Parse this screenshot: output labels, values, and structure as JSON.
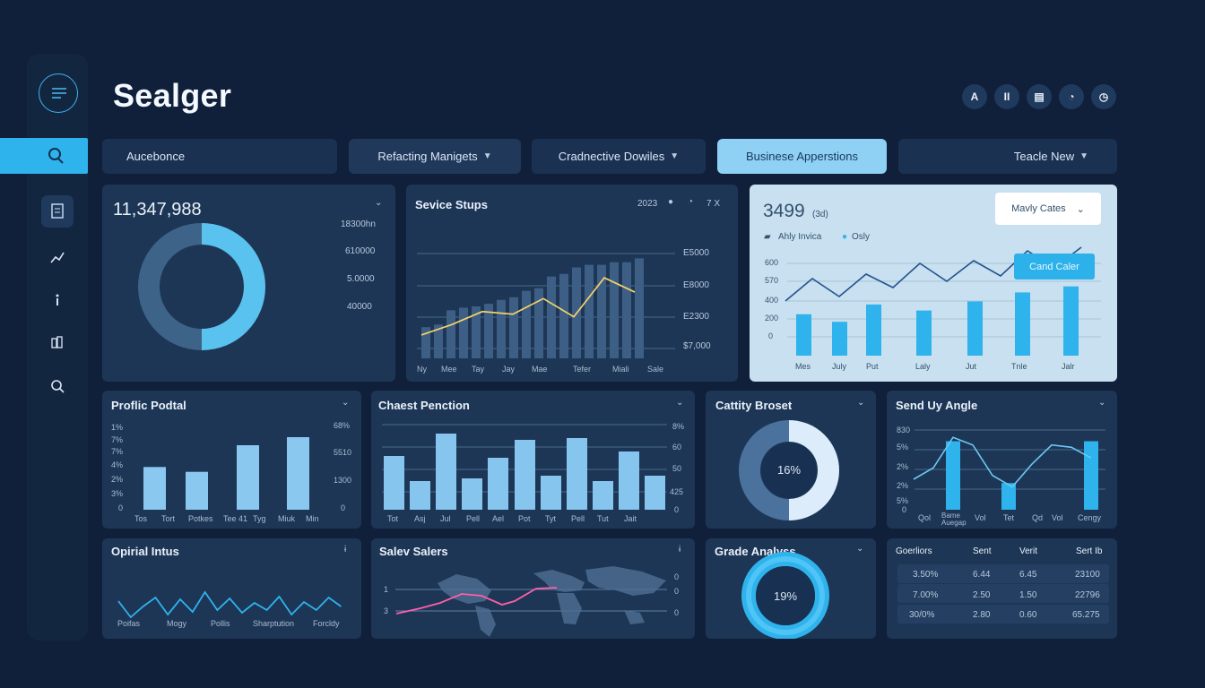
{
  "app": {
    "title": "Sealger"
  },
  "top_icons": [
    "A",
    "II",
    "▤",
    "◔",
    "◷"
  ],
  "filters": [
    {
      "label": "Aucebonce"
    },
    {
      "label": "Refacting Manigets"
    },
    {
      "label": "Cradnective Dowiles"
    },
    {
      "label": "Businese Apperstions"
    },
    {
      "label": "Teacle New"
    }
  ],
  "kpi": {
    "value": "11,347,988",
    "labels": [
      "18300hn",
      "610000",
      "5.0000",
      "40000"
    ],
    "ring_fraction": 0.5
  },
  "services": {
    "title": "Sevice Stups",
    "year": "2023",
    "close": "7 X",
    "axis": [
      "E5000",
      "E8000",
      "E2300",
      "$7,000"
    ],
    "x_labels": [
      "Ny",
      "Mee",
      "Tay",
      "Jay",
      "Mae",
      "Tefer",
      "Miali",
      "Sale"
    ],
    "chart_data": {
      "type": "bar",
      "categories": [
        "Ny",
        "Mee",
        "Tay",
        "Jay",
        "Mae",
        "Tefer",
        "Miali",
        "Sale"
      ],
      "values": [
        24,
        37,
        40,
        45,
        52,
        63,
        70,
        72
      ],
      "line": [
        18,
        26,
        36,
        34,
        46,
        32,
        62,
        51
      ]
    }
  },
  "business": {
    "value": "3499",
    "sub": "(3d)",
    "dropdown": "Mavly Cates",
    "tooltip": "Cand Caler",
    "legend": [
      "Ahly Invica",
      "Osly"
    ],
    "y_labels": [
      "600",
      "570",
      "400",
      "200",
      "0"
    ],
    "x_labels": [
      "Mes",
      "July",
      "Put",
      "Laly",
      "Jut",
      "Tnle",
      "Jalr"
    ],
    "chart_data": {
      "type": "bar",
      "categories": [
        "Mes",
        "July",
        "Put",
        "Laly",
        "Jut",
        "Tnle",
        "Jalr"
      ],
      "values": [
        55,
        45,
        68,
        60,
        72,
        84,
        92
      ],
      "line": [
        30,
        55,
        35,
        60,
        45,
        72,
        52,
        75,
        58,
        86,
        67,
        90
      ]
    }
  },
  "profile": {
    "title": "Proflic Podtal",
    "y_left": [
      "1%",
      "7%",
      "7%",
      "4%",
      "2%",
      "3%",
      "0"
    ],
    "y_right": [
      "68%",
      "5510",
      "1300",
      "0"
    ],
    "x_labels": [
      "Tos",
      "Tort",
      "Potkes",
      "Tee 41",
      "Tyg",
      "Miuk",
      "Min"
    ],
    "chart_data": {
      "type": "bar",
      "values": [
        53,
        47,
        80,
        90
      ]
    }
  },
  "chest": {
    "title": "Chaest Penction",
    "y_right": [
      "8%",
      "60",
      "50",
      "425",
      "0"
    ],
    "x_labels": [
      "Tot",
      "Asj",
      "Jul",
      "Pell",
      "Ael",
      "Pot",
      "Tyt",
      "Pell",
      "Tut",
      "Jait"
    ],
    "chart_data": {
      "type": "bar",
      "values": [
        60,
        32,
        85,
        35,
        58,
        78,
        38,
        80,
        32,
        65,
        38
      ]
    }
  },
  "capacity": {
    "title": "Cattity Broset",
    "percent": "16%",
    "ring_fraction": 0.5
  },
  "send": {
    "title": "Send Uy Angle",
    "y_labels": [
      "830",
      "5%",
      "2%",
      "2%",
      "5%",
      "0"
    ],
    "x_labels": [
      "Qol",
      "Bame Auegap",
      "Vol",
      "Tet",
      "Qd",
      "Vol",
      "Cengy"
    ],
    "chart_data": {
      "type": "bar",
      "values": [
        90,
        35,
        90
      ],
      "line": [
        40,
        55,
        95,
        85,
        45,
        30,
        60,
        85,
        82,
        68
      ]
    }
  },
  "optimal": {
    "title": "Opirial Intus",
    "x_labels": [
      "Poifas",
      "Mogy",
      "Pollis",
      "Sharptution",
      "Forcldy"
    ]
  },
  "sales": {
    "title": "Salev Salers",
    "y_left": [
      "1",
      "3"
    ],
    "y_right": [
      "0",
      "0",
      "0"
    ]
  },
  "grade": {
    "title": "Grade Analyss",
    "percent": "19%"
  },
  "table": {
    "headers": [
      "Goerliors",
      "Sent",
      "Verit",
      "Sert Ib"
    ],
    "rows": [
      [
        "3.50%",
        "6.44",
        "6.45",
        "23100"
      ],
      [
        "7.00%",
        "2.50",
        "1.50",
        "22796"
      ],
      [
        "30/0%",
        "2.80",
        "0.60",
        "65.275"
      ]
    ]
  },
  "colors": {
    "accent": "#2fb3ec",
    "panel": "#1d3656",
    "light_bar": "#7ec1ed"
  }
}
